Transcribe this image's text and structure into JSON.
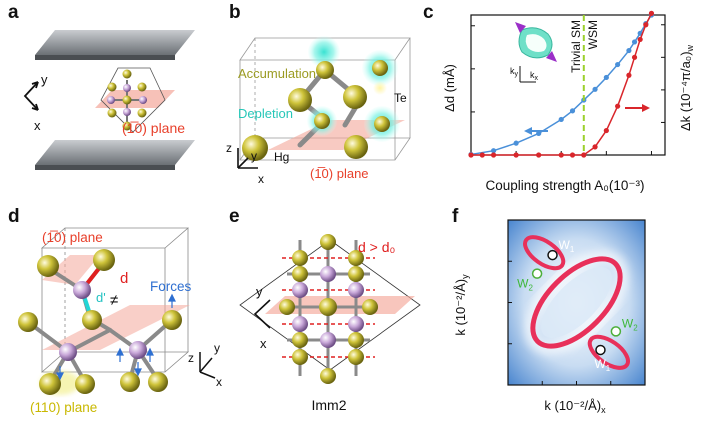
{
  "panels": {
    "a": {
      "label": "a",
      "axis_y": "y",
      "axis_x": "x",
      "plane": "(1̅0) plane"
    },
    "b": {
      "label": "b",
      "accumulation": "Accumulation",
      "depletion": "Depletion",
      "te": "Te",
      "hg": "Hg",
      "plane": "(1̅0) plane",
      "axis_z": "z",
      "axis_y": "y",
      "axis_x": "x"
    },
    "c": {
      "label": "c",
      "region_left": "Trivial SM",
      "region_right": "WSM",
      "inset_ky": "k",
      "inset_ky_sub": "y",
      "inset_kx": "k",
      "inset_kx_sub": "x",
      "ylabel_left": "Δd (mÅ)",
      "ylabel_right": "Δk  (10⁻⁴π/a₀)",
      "ylabel_right_sub": "w",
      "xlabel": "Coupling strength A₀(10⁻³)"
    },
    "d": {
      "label": "d",
      "plane_top": "(1̅0) plane",
      "plane_bottom": "(110) plane",
      "d": "d",
      "dprime": "d'",
      "neq": "≠",
      "forces": "Forces",
      "axis_z": "z",
      "axis_y": "y",
      "axis_x": "x"
    },
    "e": {
      "label": "e",
      "condition": "d > d₀",
      "axis_y": "y",
      "axis_x": "x",
      "group": "Imm2"
    },
    "f": {
      "label": "f",
      "xlabel": "k  (10⁻²/Å)",
      "xlabel_sub": "x",
      "ylabel": "k  (10⁻²/Å)",
      "ylabel_sub": "y",
      "w1": "W",
      "w1_sub": "1",
      "w2": "W",
      "w2_sub": "2"
    }
  },
  "chart_data": [
    {
      "type": "line",
      "xlabel": "Coupling strength A₀(10⁻³)",
      "xlim": [
        0,
        8.6
      ],
      "xticks": [
        0,
        2,
        4,
        6,
        8
      ],
      "ylim_left": [
        0,
        13
      ],
      "yticks_left": [
        0,
        4,
        8,
        12
      ],
      "ylim_right": [
        0,
        4.3
      ],
      "yticks_right": [
        0,
        1,
        2,
        3,
        4
      ],
      "threshold_x": 5,
      "series": [
        {
          "axis": "left",
          "color": "#4a90d9",
          "x": [
            0,
            1,
            2,
            3,
            4,
            4.5,
            5,
            5.5,
            6,
            6.5,
            7,
            7.25,
            7.5,
            7.75,
            8
          ],
          "y": [
            0.05,
            0.4,
            1.1,
            2.0,
            3.3,
            4.1,
            5.1,
            6.1,
            7.2,
            8.4,
            9.7,
            10.5,
            11.3,
            12.2,
            13.0
          ]
        },
        {
          "axis": "right",
          "color": "#d9262b",
          "x": [
            0,
            0.5,
            1,
            2,
            3,
            4,
            4.5,
            5,
            5.5,
            6,
            6.5,
            7,
            7.25,
            7.5,
            7.75,
            8
          ],
          "y": [
            0,
            0,
            0,
            0,
            0,
            0,
            0,
            0,
            0.25,
            0.75,
            1.5,
            2.45,
            3.0,
            3.55,
            4.0,
            4.35
          ]
        }
      ]
    },
    {
      "type": "heatmap",
      "xlabel": "k  (10⁻²/Å)",
      "ylabel": "k  (10⁻²/Å)",
      "xlim": [
        -8,
        8
      ],
      "ylim": [
        -8,
        8
      ],
      "xticks": [
        -8,
        -4,
        0,
        4,
        8
      ],
      "yticks": [
        -8,
        -4,
        0,
        4,
        8
      ],
      "weyl_points": [
        {
          "name": "W1",
          "kx": -2.8,
          "ky": 4.6
        },
        {
          "name": "W1",
          "kx": 2.8,
          "ky": -4.6
        },
        {
          "name": "W2",
          "kx": -4.6,
          "ky": 2.8
        },
        {
          "name": "W2",
          "kx": 4.6,
          "ky": -2.8
        }
      ]
    }
  ]
}
